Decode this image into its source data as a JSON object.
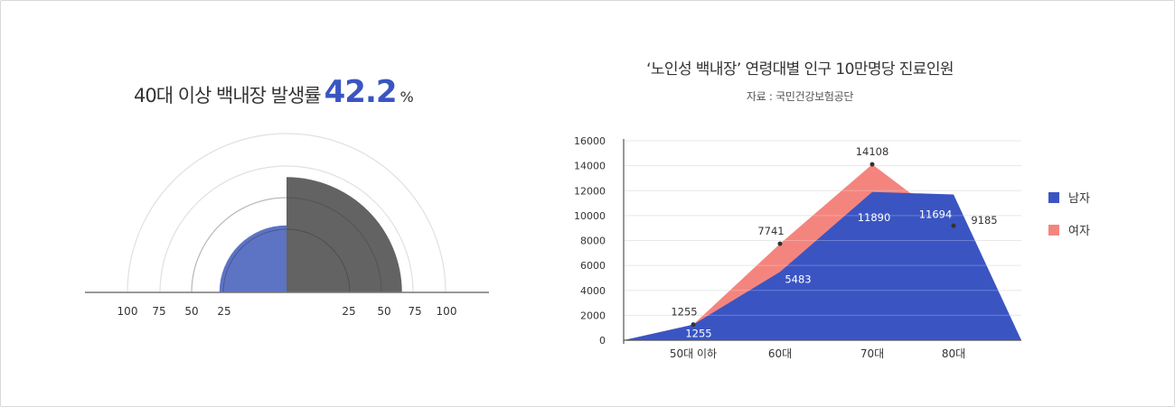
{
  "chart_data": [
    {
      "type": "semicircle-bar",
      "title": "40대 이상 백내장 발생률",
      "value": "42.2",
      "unit": "%",
      "scale_labels_left": [
        "100",
        "75",
        "50",
        "25"
      ],
      "scale_labels_right": [
        "25",
        "50",
        "75",
        "100"
      ],
      "series": [
        {
          "value": 42.2,
          "color": "#5d73c4"
        },
        {
          "value": 57.8,
          "color": "#636363"
        }
      ],
      "axis_max": 100
    },
    {
      "type": "area",
      "title": "‘노인성 백내장’ 연령대별 인구 10만명당 진료인원",
      "subtitle": "자료 : 국민건강보험공단",
      "categories": [
        "50대 이하",
        "60대",
        "70대",
        "80대"
      ],
      "yticks": [
        "0",
        "2000",
        "4000",
        "6000",
        "8000",
        "10000",
        "12000",
        "14000",
        "16000"
      ],
      "ylim": [
        0,
        16000
      ],
      "legend_position": "right",
      "series": [
        {
          "name": "남자",
          "color": "#3a55c2",
          "values": [
            1255,
            5483,
            11890,
            11694
          ],
          "labels": [
            "1255",
            "5483",
            "11890",
            "11694"
          ]
        },
        {
          "name": "여자",
          "color": "#f4857e",
          "values": [
            1255,
            7741,
            14108,
            9185
          ],
          "labels": [
            "1255",
            "7741",
            "14108",
            "9185"
          ]
        }
      ]
    }
  ]
}
